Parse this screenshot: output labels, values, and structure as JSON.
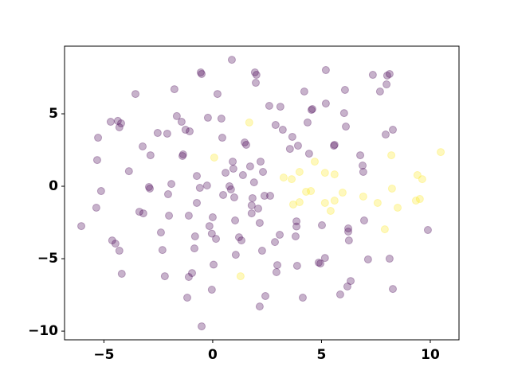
{
  "chart_data": {
    "type": "scatter",
    "xlim": [
      -6.81,
      11.32
    ],
    "ylim": [
      -10.6,
      9.67
    ],
    "xticks": [
      {
        "value": -5,
        "label": "−5"
      },
      0,
      5,
      10
    ],
    "yticks": [
      {
        "value": -10,
        "label": "−10"
      },
      {
        "value": -5,
        "label": "−5"
      },
      0,
      5
    ],
    "series": [
      {
        "color": "#440154",
        "x": [
          -6.04,
          -5.35,
          -5.31,
          -5.27,
          -5.13,
          -4.69,
          -4.62,
          -4.47,
          -4.29,
          -4.36,
          -4.21,
          -4.29,
          -4.18,
          -3.85,
          -3.55,
          -3.37,
          -3.22,
          -3.19,
          -2.93,
          -2.89,
          -2.86,
          -2.53,
          -2.38,
          -2.31,
          -2.2,
          -2.09,
          -2.05,
          -2.01,
          -1.9,
          -1.76,
          -1.65,
          -1.43,
          -1.39,
          -1.36,
          -1.25,
          -1.17,
          -1.1,
          -1.1,
          -1.06,
          -0.95,
          -0.84,
          -0.81,
          -0.73,
          -0.73,
          -0.59,
          -0.55,
          -0.51,
          -0.51,
          -0.22,
          -0.26,
          -0.15,
          -0.04,
          0.0,
          -0.04,
          0.04,
          0.15,
          0.22,
          0.4,
          0.48,
          0.44,
          0.59,
          0.77,
          0.84,
          0.88,
          0.92,
          0.95,
          0.99,
          1.03,
          1.06,
          1.21,
          1.32,
          1.39,
          1.47,
          1.54,
          1.72,
          1.79,
          1.79,
          1.83,
          1.9,
          1.94,
          1.98,
          2.01,
          2.09,
          2.16,
          2.2,
          2.31,
          2.38,
          2.42,
          2.16,
          2.27,
          2.6,
          2.64,
          2.89,
          2.86,
          2.93,
          2.97,
          3.08,
          3.11,
          3.22,
          3.55,
          3.66,
          3.81,
          3.85,
          3.85,
          3.88,
          3.92,
          4.14,
          4.21,
          4.36,
          4.43,
          4.54,
          4.58,
          4.87,
          4.95,
          5.02,
          5.16,
          5.2,
          5.2,
          5.57,
          5.6,
          5.86,
          6.04,
          6.08,
          6.12,
          6.23,
          6.23,
          6.19,
          6.34,
          6.26,
          6.78,
          6.89,
          6.92,
          6.96,
          7.14,
          7.36,
          7.69,
          7.95,
          7.99,
          8.02,
          8.13,
          8.13,
          8.28,
          8.28,
          9.89
        ],
        "values": [
          -2.75,
          -1.48,
          1.81,
          3.35,
          -0.33,
          4.45,
          -3.74,
          -3.96,
          -4.45,
          4.51,
          4.34,
          4.07,
          -6.04,
          1.04,
          6.37,
          -1.76,
          2.75,
          -1.87,
          -0.05,
          -0.16,
          2.14,
          3.68,
          -3.19,
          -4.4,
          -6.21,
          3.63,
          -0.55,
          -2.03,
          0.16,
          6.7,
          4.84,
          4.45,
          2.09,
          2.2,
          3.9,
          -7.69,
          -2.03,
          -6.26,
          3.79,
          -5.99,
          -4.29,
          -3.46,
          0.71,
          -1.15,
          -0.11,
          7.86,
          7.75,
          -9.67,
          4.73,
          0.05,
          -2.75,
          -3.27,
          -2.14,
          -7.14,
          -5.41,
          -3.63,
          6.37,
          4.67,
          -0.6,
          3.35,
          0.93,
          0.0,
          -0.22,
          8.73,
          1.7,
          1.21,
          -0.77,
          -2.36,
          -4.73,
          -3.52,
          -3.74,
          0.77,
          3.02,
          2.86,
          1.37,
          -1.32,
          -1.87,
          -0.82,
          0.27,
          7.86,
          7.14,
          7.69,
          -1.54,
          -2.53,
          1.7,
          0.99,
          -0.66,
          -7.58,
          -8.3,
          -4.45,
          5.55,
          -0.66,
          4.23,
          -3.85,
          -5.93,
          -5.44,
          -3.35,
          5.49,
          3.9,
          2.58,
          3.41,
          -3.46,
          -2.42,
          -2.78,
          -5.49,
          2.8,
          -7.69,
          6.54,
          4.4,
          2.25,
          5.27,
          5.33,
          -5.27,
          -5.33,
          -2.69,
          -4.95,
          5.71,
          8.02,
          2.8,
          2.86,
          -7.47,
          5.05,
          6.65,
          4.12,
          -2.91,
          -3.13,
          -6.92,
          -6.54,
          -3.74,
          2.14,
          1.43,
          0.99,
          -2.36,
          -5.05,
          7.69,
          6.54,
          3.57,
          7.03,
          7.64,
          7.75,
          -5.0,
          3.9,
          -7.09,
          -3.02
        ]
      },
      {
        "color": "#fde725",
        "x": [
          0.07,
          1.68,
          1.28,
          3.26,
          3.63,
          3.99,
          4.69,
          5.16,
          5.6,
          4.29,
          4.51,
          3.99,
          3.7,
          5.16,
          5.6,
          5.97,
          5.42,
          6.92,
          7.58,
          7.91,
          8.21,
          8.24,
          8.5,
          9.34,
          9.41,
          9.52,
          9.63,
          10.48
        ],
        "values": [
          1.98,
          4.4,
          -6.21,
          0.6,
          0.49,
          0.99,
          1.7,
          0.93,
          0.82,
          -0.38,
          -0.33,
          -1.1,
          -1.26,
          -1.15,
          -0.99,
          -0.44,
          -1.7,
          -0.71,
          -1.15,
          -2.97,
          2.14,
          -0.16,
          -1.48,
          -0.99,
          0.77,
          -0.88,
          0.49,
          2.36
        ]
      }
    ]
  }
}
